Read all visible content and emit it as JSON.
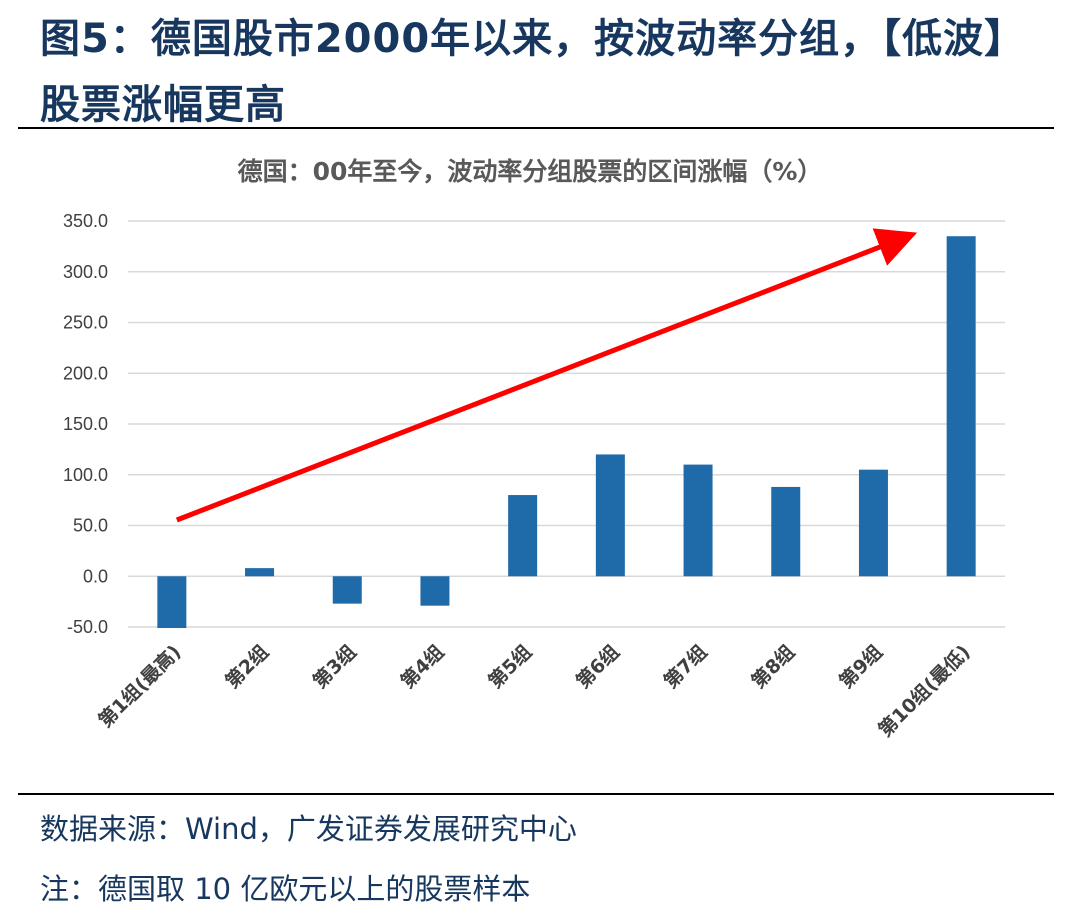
{
  "figure": {
    "title": "图5：德国股市2000年以来，按波动率分组，【低波】股票涨幅更高",
    "source": "数据来源：Wind，广发证券发展研究中心",
    "note": "注：德国取 10 亿欧元以上的股票样本"
  },
  "colors": {
    "bar": "#1f6aa8",
    "arrow": "#ff0000",
    "grid": "#d9d9d9",
    "title_text": "#17375e"
  },
  "chart_data": {
    "type": "bar",
    "title": "德国：00年至今，波动率分组股票的区间涨幅（%）",
    "categories": [
      "第1组(最高)",
      "第2组",
      "第3组",
      "第4组",
      "第5组",
      "第6组",
      "第7组",
      "第8组",
      "第9组",
      "第10组(最低)"
    ],
    "values": [
      -51,
      8,
      -27,
      -29,
      80,
      120,
      110,
      88,
      105,
      335
    ],
    "ylim": [
      -50,
      350
    ],
    "yticks": [
      "-50.0",
      "0.0",
      "50.0",
      "100.0",
      "150.0",
      "200.0",
      "250.0",
      "300.0",
      "350.0"
    ],
    "grid": true,
    "annotation": {
      "type": "trend-arrow",
      "from_category": 0,
      "to_category": 9,
      "direction": "up"
    }
  }
}
